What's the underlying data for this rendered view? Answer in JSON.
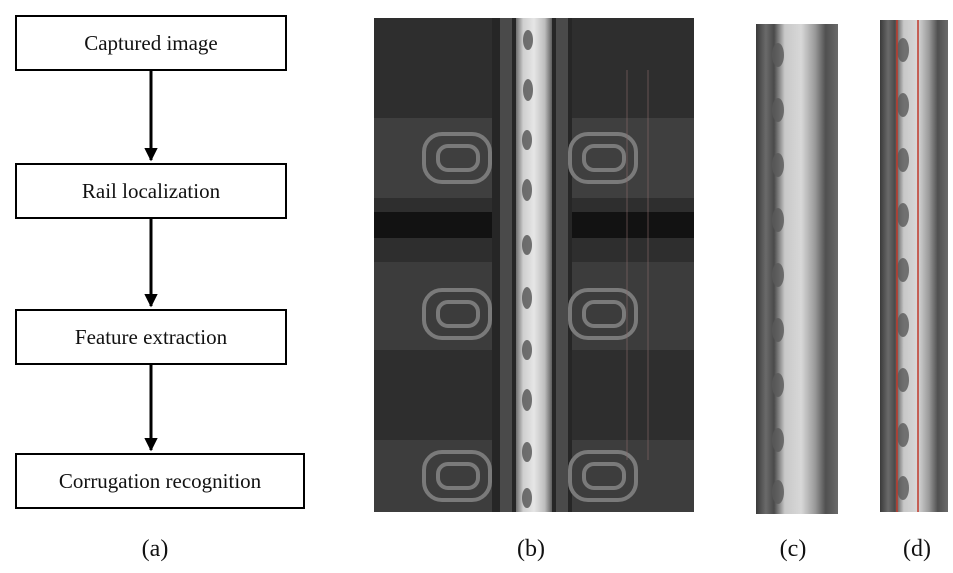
{
  "flowchart": {
    "steps": [
      "Captured image",
      "Rail localization",
      "Feature extraction",
      "Corrugation recognition"
    ]
  },
  "panels": {
    "a": "(a)",
    "b": "(b)",
    "c": "(c)",
    "d": "(d)"
  },
  "photo_panels": {
    "b": "Grayscale rail track image with sleepers and fasteners",
    "c": "Cropped rail surface strip",
    "d": "Rail surface strip with red boundary lines"
  },
  "colors": {
    "box_border": "#000000",
    "arrow": "#000000",
    "rail_bright": "#d9d9d9",
    "track_dark": "#2b2b2b",
    "boundary_red": "#c0392b"
  }
}
